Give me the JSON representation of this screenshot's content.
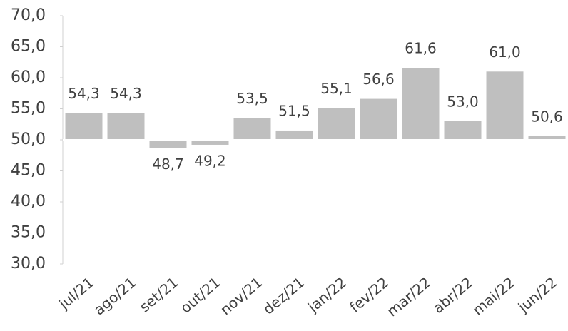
{
  "chart_data": {
    "type": "bar",
    "categories": [
      "jul/21",
      "ago/21",
      "set/21",
      "out/21",
      "nov/21",
      "dez/21",
      "jan/22",
      "fev/22",
      "mar/22",
      "abr/22",
      "mai/22",
      "jun/22"
    ],
    "values": [
      54.3,
      54.3,
      48.7,
      49.2,
      53.5,
      51.5,
      55.1,
      56.6,
      61.6,
      53.0,
      61.0,
      50.6
    ],
    "value_labels": [
      "54,3",
      "54,3",
      "48,7",
      "49,2",
      "53,5",
      "51,5",
      "55,1",
      "56,6",
      "61,6",
      "53,0",
      "61,0",
      "50,6"
    ],
    "color": "#bfbfbf",
    "ylim": [
      30,
      70
    ],
    "yticks": [
      {
        "value": 30,
        "label": "30,0"
      },
      {
        "value": 35,
        "label": "35,0"
      },
      {
        "value": 40,
        "label": "40,0"
      },
      {
        "value": 45,
        "label": "45,0"
      },
      {
        "value": 50,
        "label": "50,0"
      },
      {
        "value": 55,
        "label": "55,0"
      },
      {
        "value": 60,
        "label": "60,0"
      },
      {
        "value": 65,
        "label": "65,0"
      },
      {
        "value": 70,
        "label": "70,0"
      }
    ],
    "x_axis_crosses": 50,
    "grid": false
  }
}
